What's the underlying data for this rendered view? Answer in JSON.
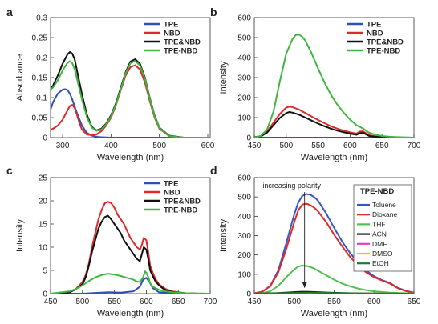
{
  "chart_data": [
    {
      "panel": "a",
      "type": "line",
      "xlabel": "Wavelength (nm)",
      "ylabel": "Absorbance",
      "xlim": [
        275,
        605
      ],
      "ylim": [
        0,
        0.3
      ],
      "xticks": [
        300,
        400,
        500,
        600
      ],
      "yticks": [
        0,
        0.05,
        0.1,
        0.15,
        0.2,
        0.25,
        0.3
      ],
      "yticklabels": [
        "0",
        "0.05",
        "0.1",
        "0.15",
        "0.2",
        "0.25",
        "0.3"
      ],
      "legend": "top-right",
      "series": [
        {
          "name": "TPE",
          "color": "#3050b8",
          "x": [
            275,
            280,
            290,
            300,
            305,
            310,
            315,
            320,
            330,
            340,
            350,
            360,
            370,
            380,
            400,
            450,
            500,
            550,
            600
          ],
          "y": [
            0.07,
            0.088,
            0.11,
            0.12,
            0.121,
            0.119,
            0.11,
            0.095,
            0.06,
            0.03,
            0.012,
            0.005,
            0.002,
            0.001,
            0,
            0,
            0,
            0,
            0
          ]
        },
        {
          "name": "NBD",
          "color": "#e02828",
          "x": [
            275,
            280,
            290,
            300,
            310,
            315,
            320,
            325,
            330,
            335,
            340,
            350,
            360,
            370,
            380,
            390,
            400,
            410,
            420,
            430,
            440,
            450,
            460,
            470,
            480,
            490,
            500,
            520,
            550,
            600
          ],
          "y": [
            0.02,
            0.022,
            0.03,
            0.045,
            0.068,
            0.079,
            0.082,
            0.074,
            0.055,
            0.035,
            0.02,
            0.008,
            0.006,
            0.008,
            0.016,
            0.03,
            0.05,
            0.08,
            0.118,
            0.155,
            0.176,
            0.181,
            0.17,
            0.138,
            0.092,
            0.05,
            0.022,
            0.004,
            0,
            0
          ]
        },
        {
          "name": "TPE&NBD",
          "color": "#111111",
          "x": [
            275,
            280,
            290,
            300,
            310,
            315,
            320,
            325,
            330,
            340,
            350,
            360,
            370,
            380,
            390,
            400,
            410,
            420,
            430,
            440,
            450,
            460,
            470,
            480,
            490,
            500,
            520,
            550,
            600
          ],
          "y": [
            0.12,
            0.13,
            0.155,
            0.185,
            0.208,
            0.214,
            0.21,
            0.195,
            0.165,
            0.108,
            0.058,
            0.027,
            0.018,
            0.022,
            0.035,
            0.056,
            0.085,
            0.124,
            0.163,
            0.19,
            0.196,
            0.184,
            0.15,
            0.1,
            0.055,
            0.025,
            0.005,
            0,
            0
          ]
        },
        {
          "name": "TPE-NBD",
          "color": "#40b540",
          "x": [
            275,
            280,
            290,
            300,
            310,
            315,
            320,
            325,
            330,
            340,
            350,
            360,
            370,
            380,
            390,
            400,
            410,
            420,
            430,
            440,
            450,
            460,
            470,
            480,
            490,
            500,
            520,
            550,
            600
          ],
          "y": [
            0.12,
            0.125,
            0.143,
            0.168,
            0.187,
            0.191,
            0.186,
            0.17,
            0.145,
            0.095,
            0.052,
            0.025,
            0.017,
            0.02,
            0.033,
            0.053,
            0.082,
            0.12,
            0.16,
            0.186,
            0.192,
            0.18,
            0.147,
            0.098,
            0.053,
            0.024,
            0.004,
            0,
            0
          ]
        }
      ]
    },
    {
      "panel": "b",
      "type": "line",
      "xlabel": "Wavelength (nm)",
      "ylabel": "Intensity",
      "xlim": [
        450,
        700
      ],
      "ylim": [
        0,
        600
      ],
      "xticks": [
        450,
        500,
        550,
        600,
        650,
        700
      ],
      "yticks": [
        0,
        100,
        200,
        300,
        400,
        500,
        600
      ],
      "legend": "top-right",
      "series": [
        {
          "name": "TPE",
          "color": "#3050b8",
          "x": [
            450,
            500,
            550,
            600,
            650,
            700
          ],
          "y": [
            0,
            0,
            0,
            0,
            0,
            0
          ]
        },
        {
          "name": "NBD",
          "color": "#e02828",
          "x": [
            450,
            460,
            470,
            480,
            490,
            500,
            505,
            510,
            520,
            530,
            540,
            550,
            560,
            570,
            580,
            590,
            600,
            610,
            615,
            620,
            625,
            630,
            640,
            650,
            660,
            680,
            700
          ],
          "y": [
            2,
            8,
            30,
            75,
            118,
            150,
            155,
            152,
            140,
            123,
            105,
            88,
            72,
            57,
            45,
            35,
            27,
            20,
            30,
            32,
            22,
            12,
            6,
            3,
            1,
            0,
            0
          ]
        },
        {
          "name": "TPE&NBD",
          "color": "#111111",
          "x": [
            450,
            460,
            470,
            480,
            490,
            500,
            505,
            510,
            520,
            530,
            540,
            550,
            560,
            570,
            580,
            590,
            600,
            610,
            615,
            620,
            625,
            630,
            640,
            650,
            660,
            680,
            700
          ],
          "y": [
            2,
            6,
            25,
            62,
            98,
            123,
            128,
            125,
            115,
            100,
            85,
            70,
            57,
            45,
            35,
            27,
            20,
            14,
            22,
            25,
            16,
            8,
            4,
            2,
            1,
            0,
            0
          ]
        },
        {
          "name": "TPE-NBD",
          "color": "#40b540",
          "x": [
            450,
            460,
            470,
            480,
            490,
            500,
            510,
            515,
            520,
            525,
            530,
            540,
            550,
            560,
            570,
            580,
            590,
            600,
            610,
            620,
            625,
            630,
            640,
            650,
            660,
            670,
            680,
            700
          ],
          "y": [
            1,
            8,
            40,
            130,
            280,
            420,
            495,
            513,
            515,
            505,
            485,
            420,
            345,
            275,
            215,
            165,
            125,
            90,
            62,
            46,
            35,
            24,
            14,
            8,
            5,
            3,
            2,
            0
          ]
        }
      ]
    },
    {
      "panel": "c",
      "type": "line",
      "xlabel": "Wavelength (nm)",
      "ylabel": "Intensity",
      "xlim": [
        450,
        700
      ],
      "ylim": [
        0,
        25
      ],
      "xticks": [
        450,
        500,
        550,
        600,
        650,
        700
      ],
      "yticks": [
        0,
        5,
        10,
        15,
        20,
        25
      ],
      "legend": "top-right",
      "series": [
        {
          "name": "TPE",
          "color": "#3050b8",
          "x": [
            450,
            500,
            540,
            560,
            580,
            590,
            595,
            600,
            605,
            610,
            620,
            650,
            700
          ],
          "y": [
            0,
            0,
            0.3,
            0.2,
            0.5,
            1.5,
            3.0,
            3.4,
            2.5,
            1.2,
            0.3,
            0,
            0
          ]
        },
        {
          "name": "NBD",
          "color": "#e02828",
          "x": [
            450,
            470,
            480,
            490,
            500,
            505,
            510,
            515,
            520,
            525,
            530,
            535,
            540,
            545,
            550,
            555,
            560,
            565,
            570,
            575,
            580,
            585,
            590,
            593,
            596,
            600,
            603,
            606,
            610,
            615,
            620,
            625,
            630,
            640,
            650,
            660,
            680,
            700
          ],
          "y": [
            0,
            0,
            0.3,
            1,
            2.5,
            4,
            6.5,
            10,
            13,
            16,
            18,
            19.5,
            19.8,
            19.5,
            18.5,
            17,
            16,
            15,
            13.5,
            12,
            11,
            10,
            9.5,
            10.5,
            12,
            11.5,
            9,
            6,
            4.5,
            3,
            2,
            1.5,
            1,
            0.5,
            0.3,
            0.1,
            0,
            0
          ]
        },
        {
          "name": "TPE&NBD",
          "color": "#111111",
          "x": [
            450,
            470,
            480,
            490,
            500,
            505,
            510,
            515,
            520,
            525,
            530,
            535,
            540,
            545,
            550,
            555,
            560,
            565,
            570,
            575,
            580,
            585,
            590,
            593,
            596,
            600,
            603,
            606,
            610,
            615,
            620,
            625,
            630,
            640,
            650,
            660,
            680,
            700
          ],
          "y": [
            0,
            0,
            0.3,
            1,
            2,
            3.5,
            6,
            9,
            11.5,
            14,
            15.5,
            16.5,
            16.8,
            16,
            15,
            14,
            13,
            11.5,
            10.5,
            9.5,
            8.5,
            7.5,
            7,
            8.5,
            10,
            9.5,
            7.5,
            5,
            3.8,
            2.5,
            1.8,
            1.2,
            0.8,
            0.4,
            0.2,
            0.1,
            0,
            0
          ]
        },
        {
          "name": "TPE-NBD",
          "color": "#40b540",
          "x": [
            450,
            480,
            490,
            500,
            510,
            520,
            530,
            540,
            550,
            560,
            570,
            580,
            585,
            590,
            595,
            598,
            600,
            603,
            606,
            610,
            620,
            630,
            640,
            660,
            700
          ],
          "y": [
            0,
            0.5,
            1,
            1.8,
            2.7,
            3.5,
            4,
            4.3,
            4.1,
            3.8,
            3.4,
            3,
            2.6,
            2.5,
            3.5,
            4.8,
            4.5,
            3.6,
            2.2,
            1.5,
            0.8,
            0.5,
            0.3,
            0.1,
            0
          ]
        }
      ]
    },
    {
      "panel": "d",
      "type": "line",
      "xlabel": "Wavelength (nm)",
      "ylabel": "Intensity",
      "xlim": [
        450,
        650
      ],
      "ylim": [
        0,
        600
      ],
      "xticks": [
        450,
        500,
        550,
        600,
        650
      ],
      "yticks": [
        0,
        100,
        200,
        300,
        400,
        500,
        600
      ],
      "legend_title": "TPE-NBD",
      "legend": "top-right",
      "annotation": "increasing polarity",
      "series": [
        {
          "name": "Toluene",
          "color": "#3a56c4",
          "x": [
            450,
            460,
            470,
            480,
            490,
            500,
            505,
            510,
            515,
            520,
            525,
            530,
            540,
            550,
            560,
            570,
            580,
            590,
            600,
            610,
            620,
            630,
            640,
            650
          ],
          "y": [
            2,
            10,
            40,
            120,
            260,
            410,
            470,
            505,
            515,
            512,
            500,
            480,
            415,
            340,
            270,
            210,
            160,
            120,
            90,
            70,
            55,
            30,
            15,
            5
          ]
        },
        {
          "name": "Dioxane",
          "color": "#e02828",
          "x": [
            450,
            460,
            470,
            480,
            490,
            500,
            505,
            510,
            515,
            520,
            525,
            530,
            540,
            550,
            560,
            570,
            580,
            590,
            600,
            610,
            620,
            630,
            640,
            650
          ],
          "y": [
            2,
            10,
            38,
            110,
            230,
            370,
            430,
            460,
            465,
            458,
            445,
            425,
            370,
            305,
            245,
            190,
            145,
            110,
            85,
            68,
            52,
            28,
            13,
            4
          ]
        },
        {
          "name": "THF",
          "color": "#50c050",
          "x": [
            450,
            460,
            470,
            480,
            490,
            500,
            505,
            510,
            515,
            520,
            525,
            530,
            540,
            550,
            560,
            570,
            580,
            590,
            600,
            620,
            640,
            650
          ],
          "y": [
            0,
            3,
            12,
            40,
            85,
            125,
            140,
            145,
            143,
            138,
            130,
            118,
            95,
            72,
            52,
            38,
            26,
            18,
            12,
            5,
            2,
            1
          ]
        },
        {
          "name": "ACN",
          "color": "#1a1a1a",
          "x": [
            450,
            480,
            500,
            510,
            520,
            540,
            560,
            580,
            600,
            650
          ],
          "y": [
            0,
            3,
            8,
            10,
            9,
            6,
            3,
            1.5,
            0.5,
            0
          ]
        },
        {
          "name": "DMF",
          "color": "#e040c0",
          "x": [
            450,
            500,
            520,
            560,
            600,
            650
          ],
          "y": [
            0,
            2,
            3,
            1.5,
            0.5,
            0
          ]
        },
        {
          "name": "DMSO",
          "color": "#f0c000",
          "x": [
            450,
            500,
            520,
            560,
            600,
            650
          ],
          "y": [
            0,
            1.5,
            2.5,
            1.2,
            0.4,
            0
          ]
        },
        {
          "name": "EtOH",
          "color": "#1e7a2e",
          "x": [
            450,
            500,
            520,
            560,
            600,
            650
          ],
          "y": [
            0,
            4,
            5,
            2.5,
            0.8,
            0
          ]
        }
      ]
    }
  ]
}
